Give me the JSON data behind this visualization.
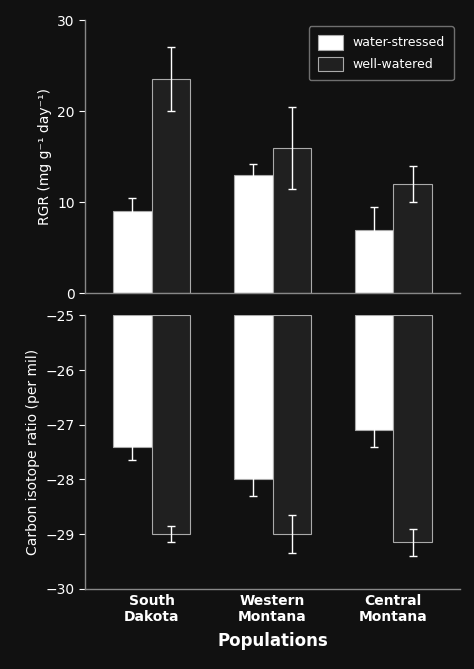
{
  "populations": [
    "South\nDakota",
    "Western\nMontana",
    "Central\nMontana"
  ],
  "rgr": {
    "water_stressed": [
      9.0,
      13.0,
      7.0
    ],
    "well_watered": [
      23.5,
      16.0,
      12.0
    ],
    "water_stressed_err": [
      1.5,
      1.2,
      2.5
    ],
    "well_watered_err": [
      3.5,
      4.5,
      2.0
    ]
  },
  "carbon": {
    "water_stressed": [
      -27.4,
      -28.0,
      -27.1
    ],
    "well_watered": [
      -29.0,
      -29.0,
      -29.15
    ],
    "water_stressed_err": [
      0.25,
      0.3,
      0.3
    ],
    "well_watered_err": [
      0.15,
      0.35,
      0.25
    ]
  },
  "bar_width": 0.32,
  "colors": {
    "water_stressed": "#ffffff",
    "well_watered": "#202020",
    "background": "#111111",
    "text": "#ffffff",
    "axes": "#888888",
    "bar_edge": "#aaaaaa"
  },
  "rgr_ylim": [
    0,
    30
  ],
  "rgr_yticks": [
    0,
    10,
    20,
    30
  ],
  "carbon_yticks": [
    -30,
    -29,
    -28,
    -27,
    -26,
    -25
  ],
  "rgr_ylabel": "RGR (mg g⁻¹ day⁻¹)",
  "carbon_ylabel": "Carbon isotope ratio (per mil)",
  "xlabel": "Populations",
  "legend_labels": [
    "water-stressed",
    "well-watered"
  ]
}
